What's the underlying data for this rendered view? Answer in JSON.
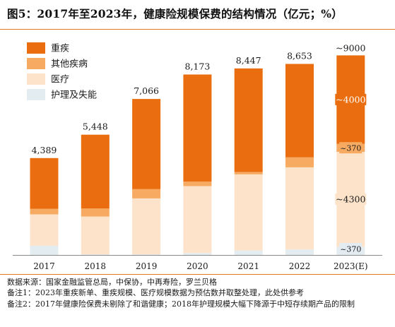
{
  "title": "图5：2017年至2023年，健康险规模保费的结构情况（亿元；%）",
  "notes": [
    "数据来源：国家金融监管总局，中保协，中再寿险，罗兰贝格",
    "备注1：2023年重疾新单、重疾规模、医疗规模数据为预估数并取整处理，此处供参考",
    "备注2：2017年健康险保费未剔除了和谐健康；2018年护理规模大幅下降源于中短存续期产品的限制"
  ],
  "chart_data": {
    "type": "bar",
    "stacked": true,
    "categories": [
      "2017",
      "2018",
      "2019",
      "2020",
      "2021",
      "2022",
      "2023(E)"
    ],
    "totals": [
      "4,389",
      "5,448",
      "7,066",
      "8,173",
      "8,447",
      "8,653",
      "~9000"
    ],
    "totals_numeric": [
      4389,
      5448,
      7066,
      8173,
      8447,
      8653,
      9000
    ],
    "series": [
      {
        "name": "护理及失能",
        "color": "#e3ecf1",
        "values": [
          420,
          30,
          30,
          90,
          200,
          250,
          370
        ]
      },
      {
        "name": "医疗",
        "color": "#fde3ca",
        "values": [
          1420,
          1710,
          2530,
          3030,
          3450,
          3720,
          4300
        ]
      },
      {
        "name": "其他疾病",
        "color": "#f7ab62",
        "values": [
          250,
          370,
          420,
          200,
          100,
          450,
          370
        ]
      },
      {
        "name": "重疾",
        "color": "#ea6e0f",
        "values": [
          2299,
          3338,
          4086,
          4853,
          4697,
          4233,
          4000
        ]
      }
    ],
    "annotations_2023": [
      "~370",
      "~4300",
      "~370",
      "~4000"
    ],
    "ylim": [
      0,
      9500
    ],
    "legend_position": "top-left"
  }
}
